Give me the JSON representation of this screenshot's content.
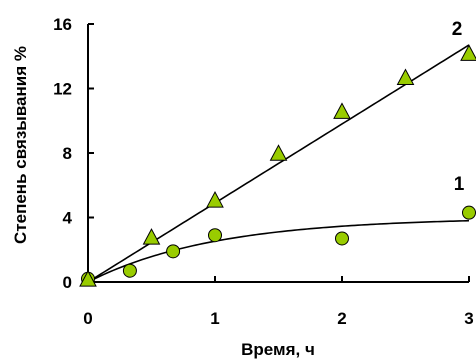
{
  "chart_data": {
    "type": "scatter",
    "title": "",
    "xlabel": "Время, ч",
    "ylabel": "Степень связывания %",
    "xlim": [
      0,
      3
    ],
    "ylim": [
      0,
      16
    ],
    "x_ticks": [
      "0",
      "1",
      "2",
      "3"
    ],
    "y_ticks": [
      "0",
      "4",
      "8",
      "12",
      "16"
    ],
    "grid": false,
    "legend": "none",
    "marker_fill": "#99cc00",
    "marker_stroke": "#000000",
    "line_color": "#000000",
    "series": [
      {
        "label": "1",
        "marker": "circle",
        "points": [
          {
            "x": 0,
            "y": 0.2
          },
          {
            "x": 0.33,
            "y": 0.7
          },
          {
            "x": 0.67,
            "y": 1.9
          },
          {
            "x": 1.0,
            "y": 2.9
          },
          {
            "x": 2.0,
            "y": 2.7
          },
          {
            "x": 3.0,
            "y": 4.3
          }
        ],
        "fit": {
          "kind": "saturation",
          "max": 4.0,
          "rate": 1.0
        }
      },
      {
        "label": "2",
        "marker": "triangle",
        "points": [
          {
            "x": 0,
            "y": 0.1
          },
          {
            "x": 0.5,
            "y": 2.7
          },
          {
            "x": 1.0,
            "y": 5.0
          },
          {
            "x": 1.5,
            "y": 7.9
          },
          {
            "x": 2.0,
            "y": 10.5
          },
          {
            "x": 2.5,
            "y": 12.6
          },
          {
            "x": 3.0,
            "y": 14.1
          }
        ],
        "fit": {
          "kind": "linear",
          "slope": 4.9,
          "intercept": 0
        }
      }
    ]
  }
}
